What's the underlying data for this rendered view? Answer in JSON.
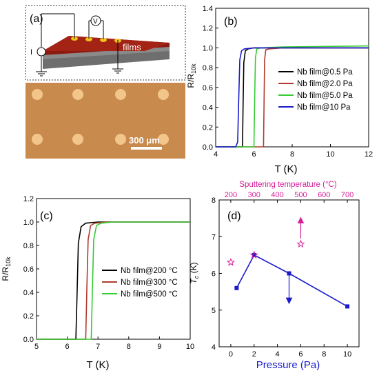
{
  "panel_a": {
    "label": "(a)",
    "films_label": "films",
    "voltmeter_label": "V",
    "current_label": "I",
    "scale_bar_label": "300 μm",
    "colors": {
      "film": "#8b1a10",
      "substrate": "#6e6e6e",
      "electrode": "#f2c21a",
      "micrograph": "#c98a4e",
      "spot": "#f2c58a"
    }
  },
  "chart_data": [
    {
      "panel": "(b)",
      "type": "line",
      "xlabel": "T (K)",
      "ylabel": "R/R10k",
      "xlim": [
        4,
        12
      ],
      "ylim": [
        0,
        1.4
      ],
      "xticks": [
        "4",
        "6",
        "8",
        "10",
        "12"
      ],
      "yticks": [
        "0.0",
        "0.2",
        "0.4",
        "0.6",
        "0.8",
        "1.0",
        "1.2",
        "1.4"
      ],
      "legend_position": "right",
      "series": [
        {
          "name": "Nb film@0.5 Pa",
          "color": "#000000",
          "x": [
            4.0,
            5.3,
            5.4,
            5.43,
            5.47,
            5.55,
            5.7,
            6.0,
            8.0,
            12.0
          ],
          "y": [
            0.0,
            0.0,
            0.0,
            0.4,
            0.85,
            0.97,
            0.99,
            1.0,
            1.0,
            1.0
          ]
        },
        {
          "name": "Nb film@2.0 Pa",
          "color": "#b03a2e",
          "x": [
            4.0,
            6.4,
            6.5,
            6.53,
            6.56,
            6.62,
            6.8,
            7.5,
            12.0
          ],
          "y": [
            0.0,
            0.0,
            0.0,
            0.45,
            0.88,
            0.98,
            0.99,
            1.0,
            1.0
          ]
        },
        {
          "name": "Nb film@5.0 Pa",
          "color": "#33cc33",
          "x": [
            4.0,
            5.9,
            6.0,
            6.04,
            6.08,
            6.15,
            6.4,
            7.5,
            12.0
          ],
          "y": [
            0.0,
            0.0,
            0.0,
            0.5,
            0.9,
            0.99,
            1.0,
            1.01,
            1.02
          ]
        },
        {
          "name": "Nb film@10 Pa",
          "color": "#1a1acc",
          "x": [
            4.0,
            5.05,
            5.15,
            5.2,
            5.26,
            5.35,
            5.5,
            6.0,
            8.0,
            12.0
          ],
          "y": [
            0.0,
            0.0,
            0.05,
            0.45,
            0.88,
            0.97,
            0.99,
            1.0,
            1.0,
            1.0
          ]
        }
      ]
    },
    {
      "panel": "(c)",
      "type": "line",
      "xlabel": "T (K)",
      "ylabel": "R/R10k",
      "xlim": [
        5,
        10
      ],
      "ylim": [
        0,
        1.2
      ],
      "xticks": [
        "5",
        "6",
        "7",
        "8",
        "9",
        "10"
      ],
      "yticks": [
        "0.0",
        "0.2",
        "0.4",
        "0.6",
        "0.8",
        "1.0",
        "1.2"
      ],
      "legend_position": "right",
      "series": [
        {
          "name": "Nb film@200 °C",
          "color": "#000000",
          "x": [
            5.0,
            6.2,
            6.28,
            6.32,
            6.36,
            6.45,
            6.6,
            7.0,
            10.0
          ],
          "y": [
            0.0,
            0.0,
            0.0,
            0.4,
            0.82,
            0.96,
            0.99,
            1.0,
            1.0
          ]
        },
        {
          "name": "Nb film@300 °C",
          "color": "#b03a2e",
          "x": [
            5.0,
            6.55,
            6.6,
            6.64,
            6.68,
            6.76,
            6.9,
            7.3,
            10.0
          ],
          "y": [
            0.0,
            0.0,
            0.0,
            0.45,
            0.85,
            0.97,
            0.99,
            1.0,
            1.0
          ]
        },
        {
          "name": "Nb film@500 °C",
          "color": "#33cc33",
          "x": [
            5.0,
            6.72,
            6.78,
            6.82,
            6.86,
            6.95,
            7.1,
            7.5,
            10.0
          ],
          "y": [
            0.0,
            0.0,
            0.0,
            0.45,
            0.85,
            0.97,
            0.99,
            1.0,
            1.0
          ]
        }
      ]
    },
    {
      "panel": "(d)",
      "type": "scatter",
      "xlabel": "Pressure (Pa)",
      "ylabel": "Tc (K)",
      "top_xlabel": "Sputtering temperature (°C)",
      "xlim": [
        -1,
        11
      ],
      "ylim": [
        4,
        8
      ],
      "xticks": [
        "0",
        "2",
        "4",
        "6",
        "8",
        "10"
      ],
      "yticks": [
        "4",
        "5",
        "6",
        "7",
        "8"
      ],
      "top_xticks": [
        "200",
        "300",
        "400",
        "500",
        "600",
        "700"
      ],
      "top_xlim": [
        150,
        750
      ],
      "series": [
        {
          "name": "pressure",
          "color": "#1a1acc",
          "marker": "square",
          "x": [
            0.5,
            2.0,
            5.0,
            10.0
          ],
          "y": [
            5.6,
            6.5,
            6.0,
            5.1
          ]
        },
        {
          "name": "sputtering temperature",
          "color": "#d6209a",
          "marker": "star",
          "axis": "top",
          "x": [
            200,
            300,
            500
          ],
          "y": [
            6.3,
            6.5,
            6.8
          ]
        }
      ],
      "annotations": [
        {
          "type": "arrow",
          "color": "#1a1acc",
          "x": 5.0,
          "y_from": 5.95,
          "y_to": 5.25,
          "axis": "bottom"
        },
        {
          "type": "arrow",
          "color": "#d6209a",
          "x": 500,
          "y_from": 6.95,
          "y_to": 7.45,
          "axis": "top"
        }
      ]
    }
  ]
}
